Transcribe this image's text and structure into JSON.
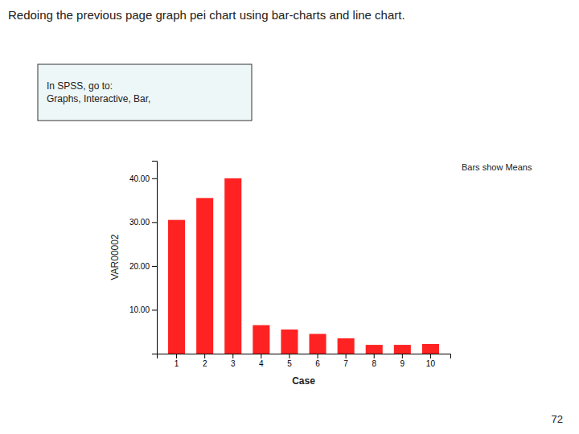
{
  "chart_data": {
    "type": "bar",
    "title": "Redoing the previous page graph pei chart using bar-charts and line chart.",
    "annotations": [
      "In SPSS, go to:\nGraphs, Interactive, Bar,",
      "Bars show Means",
      "72"
    ],
    "categories": [
      "1",
      "2",
      "3",
      "4",
      "5",
      "6",
      "7",
      "8",
      "9",
      "10"
    ],
    "values": [
      30.5,
      35.5,
      40.0,
      6.5,
      5.5,
      4.5,
      3.5,
      2.0,
      2.0,
      2.2
    ],
    "color": "#FF2222",
    "xlabel": "Case",
    "ylabel": "VAR00002",
    "ylim": [
      0,
      44
    ],
    "yticks": [
      {
        "value": 10,
        "label": "10.00"
      },
      {
        "value": 20,
        "label": "20.00"
      },
      {
        "value": 30,
        "label": "30.00"
      },
      {
        "value": 40,
        "label": "40.00"
      }
    ],
    "grid": false
  }
}
